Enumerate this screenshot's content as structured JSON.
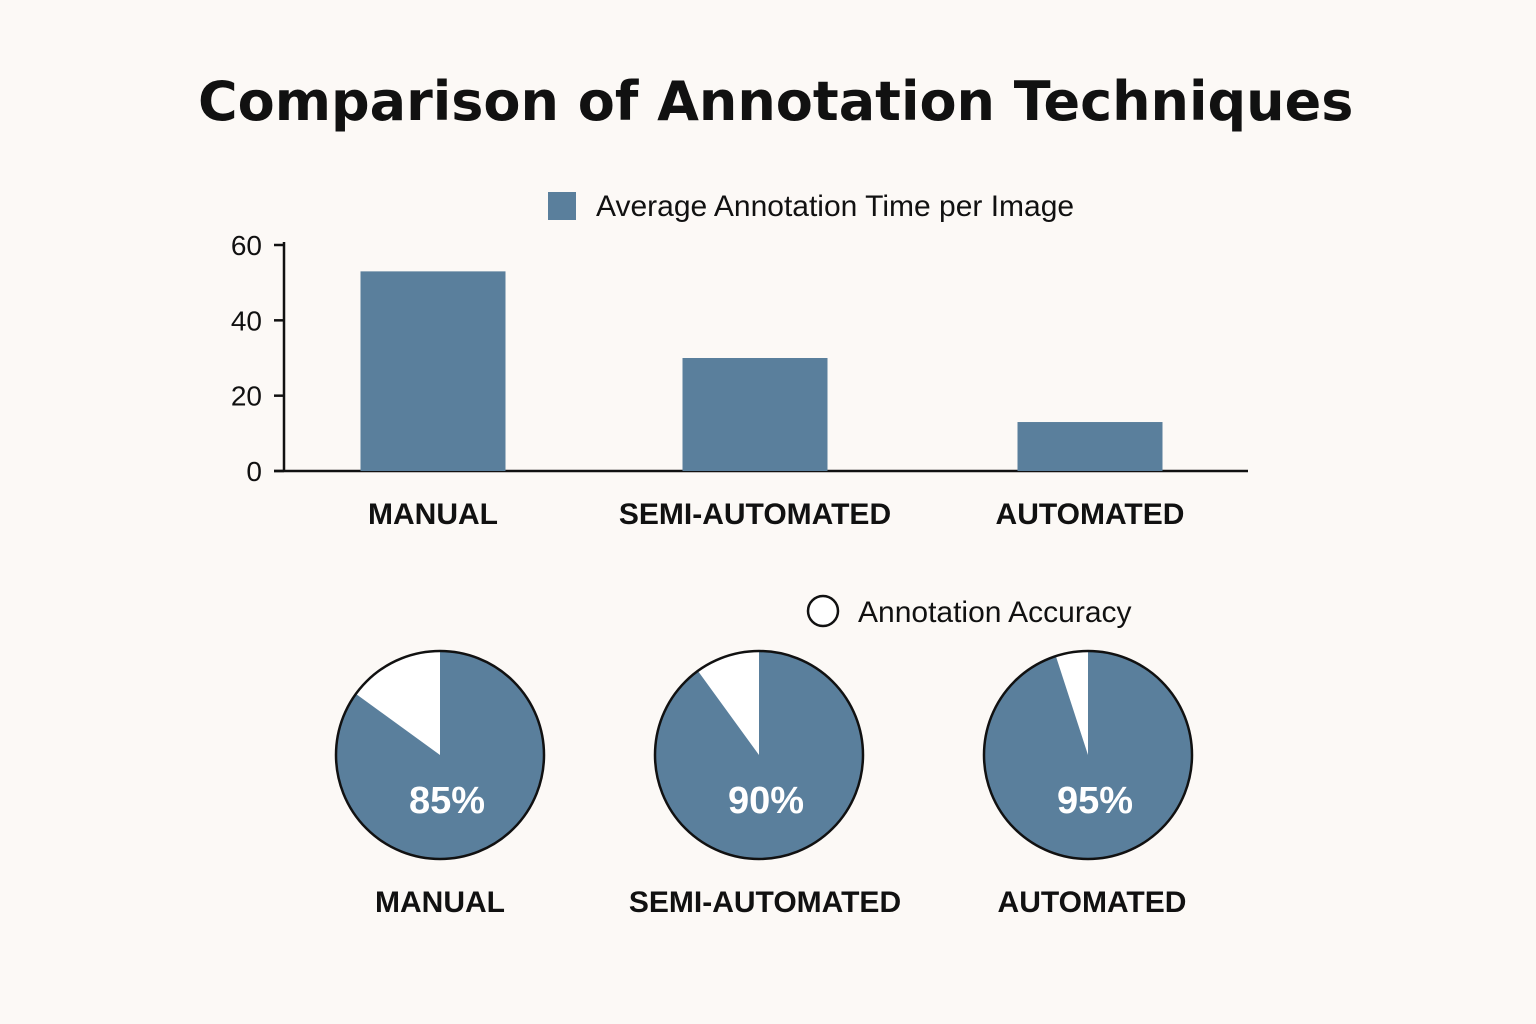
{
  "colors": {
    "background": "#fcf9f6",
    "bar": "#5a7f9c",
    "pie_fill": "#5a7f9c",
    "pie_rest": "#ffffff",
    "axis": "#111111"
  },
  "chart_data": [
    {
      "type": "bar",
      "title": "Comparison of Annotation Techniques",
      "categories": [
        "MANUAL",
        "SEMI-AUTOMATED",
        "AUTOMATED"
      ],
      "series": [
        {
          "name": "Average Annotation Time per Image",
          "values": [
            53,
            30,
            13
          ]
        }
      ],
      "yticks": [
        "0",
        "20",
        "40",
        "60"
      ],
      "ylim": [
        0,
        60
      ],
      "legend_position": "top-center",
      "grid": false
    },
    {
      "type": "pie",
      "legend": "Annotation Accuracy",
      "legend_position": "top-right",
      "categories": [
        "MANUAL",
        "SEMI-AUTOMATED",
        "AUTOMATED"
      ],
      "values": [
        85,
        90,
        95
      ],
      "value_labels": [
        "85%",
        "90%",
        "95%"
      ]
    }
  ]
}
